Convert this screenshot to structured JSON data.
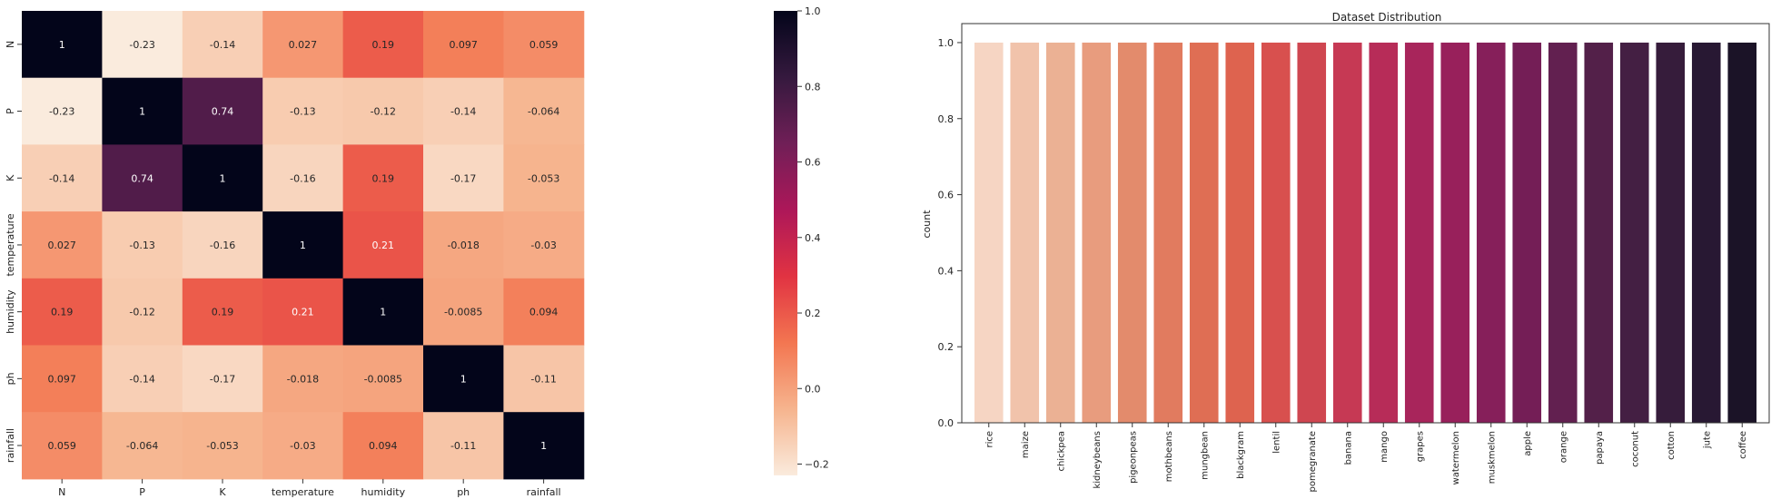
{
  "chart_data": [
    {
      "type": "heatmap",
      "title": "",
      "labels": [
        "N",
        "P",
        "K",
        "temperature",
        "humidity",
        "ph",
        "rainfall"
      ],
      "value_labels": [
        [
          "1",
          "-0.23",
          "-0.14",
          "0.027",
          "0.19",
          "0.097",
          "0.059"
        ],
        [
          "-0.23",
          "1",
          "0.74",
          "-0.13",
          "-0.12",
          "-0.14",
          "-0.064"
        ],
        [
          "-0.14",
          "0.74",
          "1",
          "-0.16",
          "0.19",
          "-0.17",
          "-0.053"
        ],
        [
          "0.027",
          "-0.13",
          "-0.16",
          "1",
          "0.21",
          "-0.018",
          "-0.03"
        ],
        [
          "0.19",
          "-0.12",
          "0.19",
          "0.21",
          "1",
          "-0.0085",
          "0.094"
        ],
        [
          "0.097",
          "-0.14",
          "-0.17",
          "-0.018",
          "-0.0085",
          "1",
          "-0.11"
        ],
        [
          "0.059",
          "-0.064",
          "-0.053",
          "-0.03",
          "0.094",
          "-0.11",
          "1"
        ]
      ],
      "values": [
        [
          1,
          -0.23,
          -0.14,
          0.027,
          0.19,
          0.097,
          0.059
        ],
        [
          -0.23,
          1,
          0.74,
          -0.13,
          -0.12,
          -0.14,
          -0.064
        ],
        [
          -0.14,
          0.74,
          1,
          -0.16,
          0.19,
          -0.17,
          -0.053
        ],
        [
          0.027,
          -0.13,
          -0.16,
          1,
          0.21,
          -0.018,
          -0.03
        ],
        [
          0.19,
          -0.12,
          0.19,
          0.21,
          1,
          -0.0085,
          0.094
        ],
        [
          0.097,
          -0.14,
          -0.17,
          -0.018,
          -0.0085,
          1,
          -0.11
        ],
        [
          0.059,
          -0.064,
          -0.053,
          -0.03,
          0.094,
          -0.11,
          1
        ]
      ],
      "colorbar": {
        "range": [
          -0.23,
          1
        ],
        "ticks": [
          -0.2,
          0.0,
          0.2,
          0.4,
          0.6,
          0.8,
          1.0
        ],
        "tick_labels": [
          "−0.2",
          "0.0",
          "0.2",
          "0.4",
          "0.6",
          "0.8",
          "1.0"
        ]
      },
      "colormap": [
        "#faebdd",
        "#f6b48e",
        "#f37651",
        "#e13342",
        "#ad1759",
        "#701f57",
        "#35193e",
        "#03051a"
      ]
    },
    {
      "type": "bar",
      "title": "Dataset Distribution",
      "xlabel": "",
      "ylabel": "count",
      "categories": [
        "rice",
        "maize",
        "chickpea",
        "kidneybeans",
        "pigeonpeas",
        "mothbeans",
        "mungbean",
        "blackgram",
        "lentil",
        "pomegranate",
        "banana",
        "mango",
        "grapes",
        "watermelon",
        "muskmelon",
        "apple",
        "orange",
        "papaya",
        "coconut",
        "cotton",
        "jute",
        "coffee"
      ],
      "values": [
        1.0,
        1.0,
        1.0,
        1.0,
        1.0,
        1.0,
        1.0,
        1.0,
        1.0,
        1.0,
        1.0,
        1.0,
        1.0,
        1.0,
        1.0,
        1.0,
        1.0,
        1.0,
        1.0,
        1.0,
        1.0,
        1.0
      ],
      "ylim": [
        0,
        1.05
      ],
      "yticks": [
        0.0,
        0.2,
        0.4,
        0.6,
        0.8,
        1.0
      ],
      "ytick_labels": [
        "0.0",
        "0.2",
        "0.4",
        "0.6",
        "0.8",
        "1.0"
      ],
      "bar_colors": [
        "#f6d5c3",
        "#f1c3ab",
        "#ebb194",
        "#e89c7e",
        "#e38b6c",
        "#e17b5f",
        "#df6e54",
        "#de634f",
        "#d8504e",
        "#cf4650",
        "#c63954",
        "#b72c58",
        "#a8255b",
        "#98205b",
        "#861f5a",
        "#741e56",
        "#622050",
        "#532049",
        "#441f43",
        "#361c3b",
        "#281833",
        "#1b1327"
      ]
    }
  ]
}
